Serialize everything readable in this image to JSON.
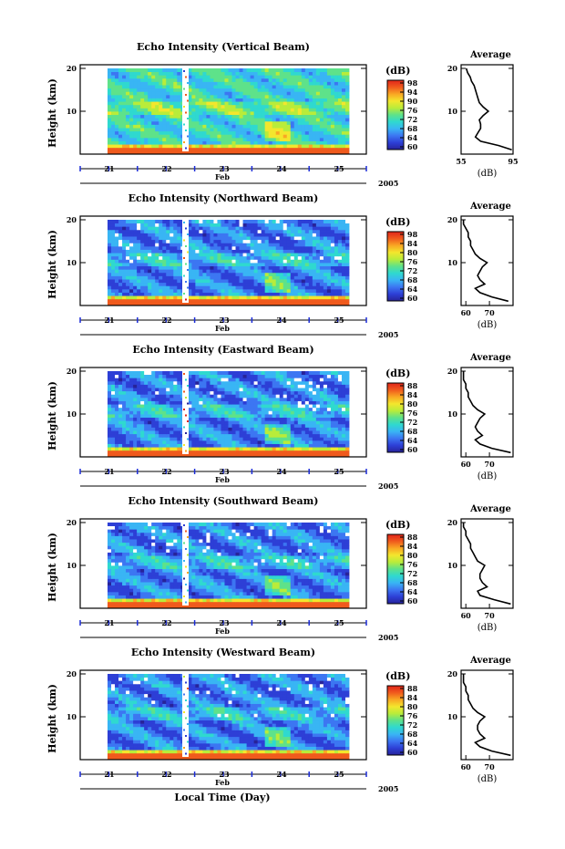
{
  "chart_data": [
    {
      "type": "heatmap",
      "title": "Echo Intensity (Vertical Beam)",
      "ylabel": "Height (km)",
      "yticks": [
        "20",
        "10"
      ],
      "ylim": [
        0,
        20
      ],
      "x_day_labels": [
        "21",
        "22",
        "23",
        "24",
        "25"
      ],
      "x_month": "Feb",
      "year": "2005",
      "colorbar": {
        "unit": "(dB)",
        "ticks": [
          "98",
          "94",
          "90",
          "76",
          "72",
          "68",
          "64",
          "60"
        ]
      },
      "average": {
        "title": "Average",
        "xlabel": "(dB)",
        "xticks": [
          "55",
          "95"
        ],
        "xlim": [
          55,
          95
        ],
        "yticks": [
          "20",
          "10"
        ],
        "height": [
          1,
          2,
          3,
          4,
          5,
          6,
          7,
          8,
          9,
          10,
          11,
          12,
          13,
          14,
          15,
          16,
          17,
          18,
          19,
          20
        ],
        "values": [
          94,
          84,
          70,
          66,
          68,
          70,
          70,
          69,
          72,
          76,
          72,
          69,
          68,
          67,
          66,
          65,
          63,
          62,
          60,
          59
        ]
      }
    },
    {
      "type": "heatmap",
      "title": "Echo Intensity (Northward Beam)",
      "ylabel": "Height (km)",
      "yticks": [
        "20",
        "10"
      ],
      "ylim": [
        0,
        20
      ],
      "x_day_labels": [
        "21",
        "22",
        "23",
        "24",
        "25"
      ],
      "x_month": "Feb",
      "year": "2005",
      "colorbar": {
        "unit": "(dB)",
        "ticks": [
          "98",
          "84",
          "80",
          "76",
          "72",
          "68",
          "64",
          "60"
        ]
      },
      "average": {
        "title": "Average",
        "xlabel": "(dB)",
        "xticks": [
          "60",
          "70"
        ],
        "xlim": [
          58,
          80
        ],
        "yticks": [
          "20",
          "10"
        ],
        "height": [
          1,
          2,
          3,
          4,
          5,
          6,
          7,
          8,
          9,
          10,
          11,
          12,
          13,
          14,
          15,
          16,
          17,
          18,
          19,
          20
        ],
        "values": [
          78,
          71,
          66,
          64,
          68,
          66,
          65,
          66,
          67,
          69,
          66,
          64,
          63,
          62,
          62,
          61,
          61,
          60,
          59,
          59
        ]
      }
    },
    {
      "type": "heatmap",
      "title": "Echo Intensity (Eastward Beam)",
      "ylabel": "Height (km)",
      "yticks": [
        "20",
        "10"
      ],
      "ylim": [
        0,
        20
      ],
      "x_day_labels": [
        "21",
        "22",
        "23",
        "24",
        "25"
      ],
      "x_month": "Feb",
      "year": "2005",
      "colorbar": {
        "unit": "(dB)",
        "ticks": [
          "88",
          "84",
          "80",
          "76",
          "72",
          "68",
          "64",
          "60"
        ]
      },
      "average": {
        "title": "Average",
        "xlabel": "(dB)",
        "xticks": [
          "60",
          "70"
        ],
        "xlim": [
          58,
          80
        ],
        "yticks": [
          "20",
          "10"
        ],
        "height": [
          1,
          2,
          3,
          4,
          5,
          6,
          7,
          8,
          9,
          10,
          11,
          12,
          13,
          14,
          15,
          16,
          17,
          18,
          19,
          20
        ],
        "values": [
          79,
          71,
          66,
          64,
          67,
          65,
          64,
          65,
          66,
          68,
          65,
          63,
          62,
          61,
          61,
          60,
          60,
          59,
          59,
          59
        ]
      }
    },
    {
      "type": "heatmap",
      "title": "Echo Intensity (Southward Beam)",
      "ylabel": "Height (km)",
      "yticks": [
        "20",
        "10"
      ],
      "ylim": [
        0,
        20
      ],
      "x_day_labels": [
        "21",
        "22",
        "23",
        "24",
        "25"
      ],
      "x_month": "Feb",
      "year": "2005",
      "colorbar": {
        "unit": "(dB)",
        "ticks": [
          "88",
          "84",
          "80",
          "76",
          "72",
          "68",
          "64",
          "60"
        ]
      },
      "average": {
        "title": "Average",
        "xlabel": "(dB)",
        "xticks": [
          "60",
          "70"
        ],
        "xlim": [
          58,
          80
        ],
        "yticks": [
          "20",
          "10"
        ],
        "height": [
          1,
          2,
          3,
          4,
          5,
          6,
          7,
          8,
          9,
          10,
          11,
          12,
          13,
          14,
          15,
          16,
          17,
          18,
          19,
          20
        ],
        "values": [
          79,
          72,
          66,
          65,
          69,
          67,
          66,
          66,
          67,
          68,
          65,
          64,
          63,
          62,
          62,
          61,
          60,
          60,
          59,
          59
        ]
      }
    },
    {
      "type": "heatmap",
      "title": "Echo Intensity (Westward Beam)",
      "ylabel": "Height (km)",
      "yticks": [
        "20",
        "10"
      ],
      "ylim": [
        0,
        20
      ],
      "x_day_labels": [
        "21",
        "22",
        "23",
        "24",
        "25"
      ],
      "x_month": "Feb",
      "year": "2005",
      "colorbar": {
        "unit": "(dB)",
        "ticks": [
          "88",
          "84",
          "80",
          "76",
          "72",
          "68",
          "64",
          "60"
        ]
      },
      "average": {
        "title": "Average",
        "xlabel": "(dB)",
        "xticks": [
          "60",
          "70"
        ],
        "xlim": [
          58,
          80
        ],
        "yticks": [
          "20",
          "10"
        ],
        "height": [
          1,
          2,
          3,
          4,
          5,
          6,
          7,
          8,
          9,
          10,
          11,
          12,
          13,
          14,
          15,
          16,
          17,
          18,
          19,
          20
        ],
        "values": [
          79,
          71,
          66,
          64,
          68,
          66,
          65,
          65,
          66,
          68,
          65,
          63,
          62,
          61,
          61,
          60,
          60,
          59,
          59,
          59
        ]
      }
    }
  ],
  "bottom_xlabel": "Local Time (Day)",
  "colors": {
    "colormap": [
      "#27239a",
      "#2d3fd6",
      "#3c76f2",
      "#39b5f4",
      "#2fd9cf",
      "#5ee28a",
      "#b9ec3a",
      "#f3e62d",
      "#f9a723",
      "#f05a1d",
      "#e0251a"
    ],
    "axis": "#000000",
    "time_marker": "#1a2bd8",
    "missing": "#ffffff"
  }
}
